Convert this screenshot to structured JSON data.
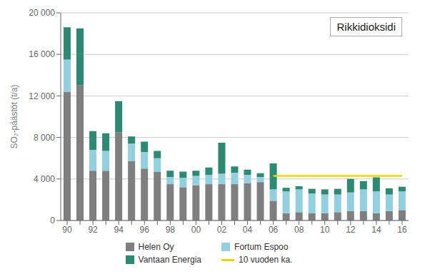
{
  "chart_data": {
    "type": "bar",
    "title": "Rikkidioksidi",
    "ylabel": "SO₂-päästöt (t/a)",
    "categories": [
      "90",
      null,
      "92",
      null,
      "94",
      null,
      "96",
      null,
      "98",
      null,
      "00",
      null,
      "02",
      null,
      "04",
      null,
      "06",
      null,
      "08",
      null,
      "10",
      null,
      "12",
      null,
      "14",
      null,
      "16"
    ],
    "series": [
      {
        "name": "Helen Oy",
        "color": "#7f7f7f",
        "type": "bar",
        "values": [
          12400,
          13000,
          4800,
          4800,
          8500,
          5700,
          5000,
          4700,
          3500,
          3200,
          3400,
          3500,
          3500,
          3500,
          3600,
          3700,
          1900,
          700,
          800,
          700,
          700,
          800,
          900,
          900,
          700,
          900,
          1000
        ]
      },
      {
        "name": "Fortum Espoo",
        "color": "#92d0e0",
        "type": "bar",
        "values": [
          3100,
          0,
          2000,
          1900,
          0,
          1700,
          1600,
          1300,
          700,
          900,
          900,
          900,
          1000,
          1100,
          800,
          500,
          1100,
          2100,
          2200,
          1900,
          1800,
          1700,
          1800,
          2100,
          2100,
          1600,
          1800
        ]
      },
      {
        "name": "Vantaan Energia",
        "color": "#2d8a72",
        "type": "bar",
        "values": [
          3100,
          5500,
          1800,
          1700,
          3000,
          700,
          1000,
          700,
          600,
          600,
          500,
          700,
          3000,
          600,
          500,
          350,
          2500,
          350,
          300,
          450,
          500,
          550,
          1300,
          800,
          1350,
          600,
          450
        ]
      },
      {
        "name": "10 vuoden ka.",
        "color": "#e8d800",
        "type": "line",
        "values": [
          null,
          null,
          null,
          null,
          null,
          null,
          null,
          null,
          null,
          null,
          null,
          null,
          null,
          null,
          null,
          null,
          4300,
          4300,
          4300,
          4300,
          4300,
          4300,
          4300,
          4300,
          4300,
          4300,
          4300
        ]
      }
    ],
    "stacked": true,
    "ylim": [
      0,
      20000
    ],
    "yticks": [
      0,
      {
        "value": 4000,
        "label": "4 000"
      },
      {
        "value": 8000,
        "label": "8 000"
      },
      {
        "value": 12000,
        "label": "12 000"
      },
      {
        "value": 16000,
        "label": "16 000"
      },
      {
        "value": 20000,
        "label": "20 000"
      }
    ],
    "grid": true,
    "legend": "bottom"
  }
}
